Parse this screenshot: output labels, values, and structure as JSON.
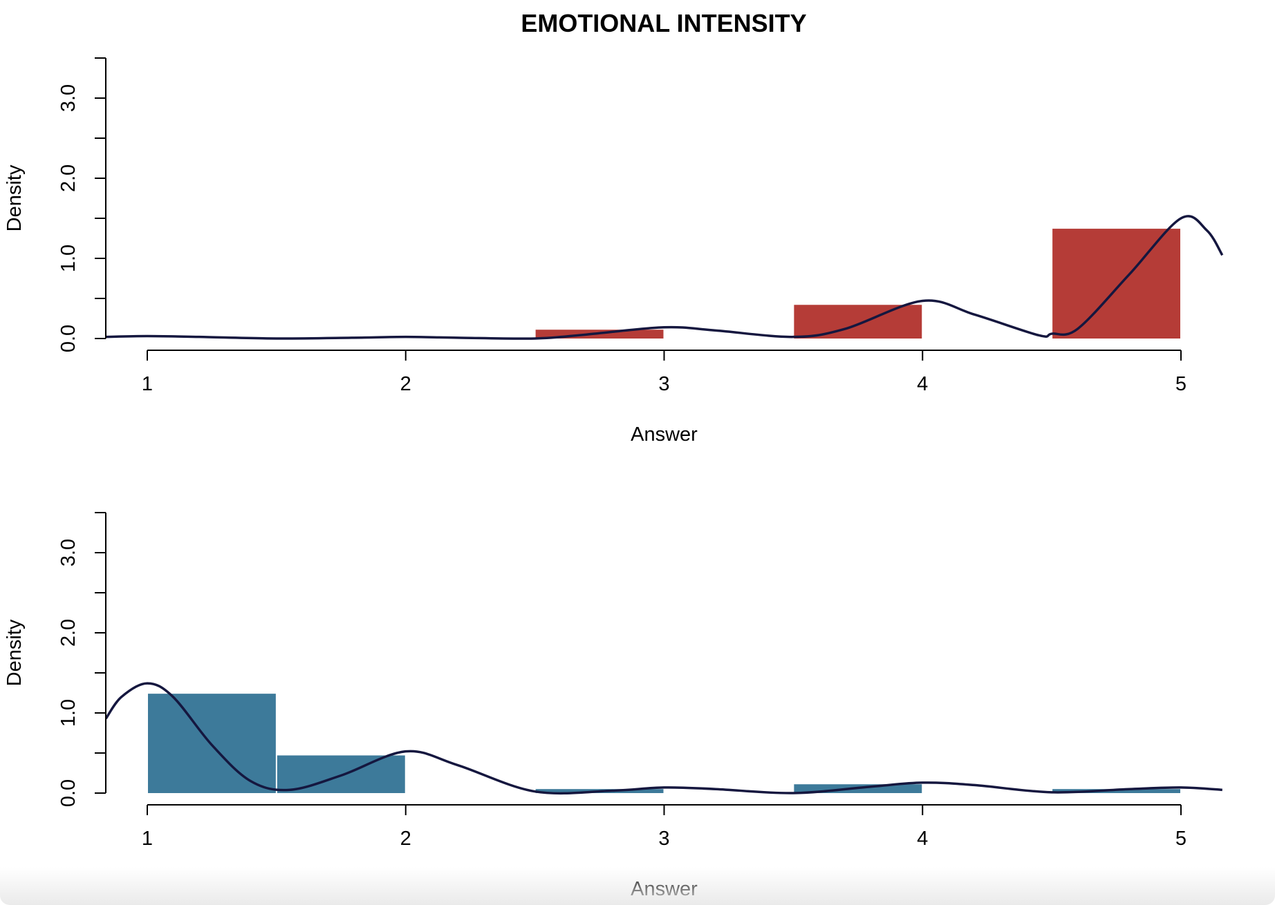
{
  "title": "EMOTIONAL INTENSITY",
  "chart_data": [
    {
      "type": "bar",
      "title": "",
      "xlabel": "Answer",
      "ylabel": "Density",
      "xlim": [
        0.84,
        5.16
      ],
      "ylim": [
        0,
        3.5
      ],
      "x_ticks": [
        "1",
        "2",
        "3",
        "4",
        "5"
      ],
      "y_ticks": [
        "0.0",
        "1.0",
        "2.0",
        "3.0"
      ],
      "color": "#b53c37",
      "bars": [
        {
          "x0": 2.5,
          "x1": 3.0,
          "value": 0.11
        },
        {
          "x0": 3.5,
          "x1": 4.0,
          "value": 0.42
        },
        {
          "x0": 4.5,
          "x1": 5.0,
          "value": 1.37
        }
      ],
      "density_curve": {
        "color": "#15173f",
        "x": [
          0.84,
          1.0,
          1.2,
          1.5,
          1.8,
          2.0,
          2.2,
          2.5,
          2.7,
          3.0,
          3.2,
          3.5,
          3.7,
          4.0,
          4.2,
          4.45,
          4.5,
          4.6,
          4.8,
          5.0,
          5.1,
          5.16
        ],
        "y": [
          0.02,
          0.03,
          0.02,
          0.0,
          0.01,
          0.02,
          0.01,
          0.0,
          0.05,
          0.14,
          0.1,
          0.02,
          0.12,
          0.47,
          0.3,
          0.04,
          0.06,
          0.12,
          0.8,
          1.5,
          1.35,
          1.04
        ]
      }
    },
    {
      "type": "bar",
      "title": "",
      "xlabel": "Answer",
      "ylabel": "Density",
      "xlim": [
        0.84,
        5.16
      ],
      "ylim": [
        0,
        3.5
      ],
      "x_ticks": [
        "1",
        "2",
        "3",
        "4",
        "5"
      ],
      "y_ticks": [
        "0.0",
        "1.0",
        "2.0",
        "3.0"
      ],
      "color": "#3d7a9a",
      "bars": [
        {
          "x0": 1.0,
          "x1": 1.5,
          "value": 1.24
        },
        {
          "x0": 1.5,
          "x1": 2.0,
          "value": 0.47
        },
        {
          "x0": 2.5,
          "x1": 3.0,
          "value": 0.05
        },
        {
          "x0": 3.5,
          "x1": 4.0,
          "value": 0.11
        },
        {
          "x0": 4.5,
          "x1": 5.0,
          "value": 0.05
        }
      ],
      "density_curve": {
        "color": "#15173f",
        "x": [
          0.84,
          0.9,
          1.0,
          1.1,
          1.25,
          1.4,
          1.55,
          1.75,
          2.0,
          2.2,
          2.5,
          2.8,
          3.0,
          3.2,
          3.5,
          3.8,
          4.0,
          4.2,
          4.5,
          4.8,
          5.0,
          5.16
        ],
        "y": [
          0.93,
          1.2,
          1.37,
          1.2,
          0.6,
          0.15,
          0.04,
          0.22,
          0.52,
          0.35,
          0.02,
          0.03,
          0.07,
          0.05,
          0.0,
          0.08,
          0.13,
          0.1,
          0.01,
          0.05,
          0.07,
          0.04
        ]
      }
    }
  ]
}
